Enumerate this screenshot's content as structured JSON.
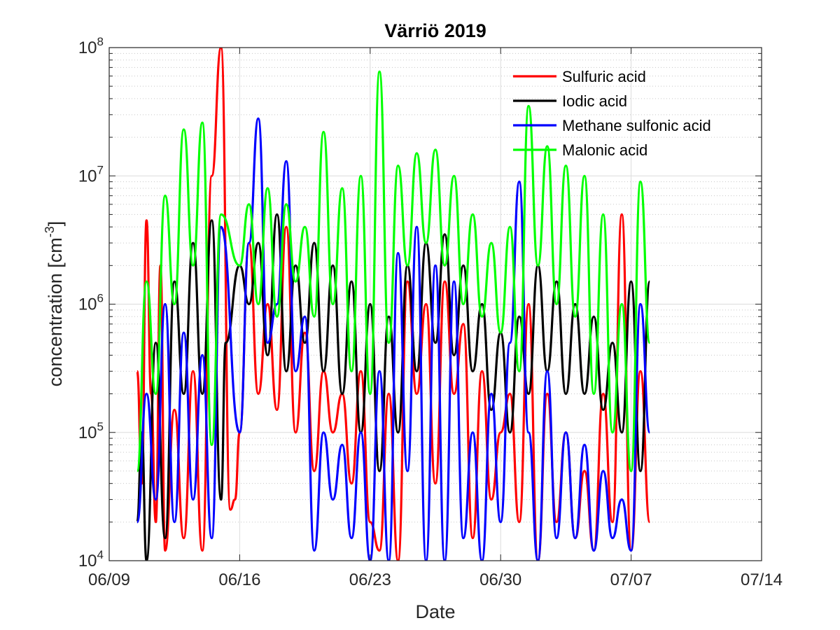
{
  "chart_data": {
    "type": "line",
    "title": "Värriö 2019",
    "xlabel": "Date",
    "ylabel_main": "concentration [cm",
    "ylabel_sup": "-3",
    "ylabel_end": "]",
    "y_scale": "log",
    "xlim": [
      "2019-06-09",
      "2019-07-14"
    ],
    "ylim": [
      10000,
      100000000
    ],
    "x_ticks": [
      {
        "date": "2019-06-09",
        "label": "06/09"
      },
      {
        "date": "2019-06-16",
        "label": "06/16"
      },
      {
        "date": "2019-06-23",
        "label": "06/23"
      },
      {
        "date": "2019-06-30",
        "label": "06/30"
      },
      {
        "date": "2019-07-07",
        "label": "07/07"
      },
      {
        "date": "2019-07-14",
        "label": "07/14"
      }
    ],
    "y_ticks": [
      {
        "value": 10000,
        "base": "10",
        "exp": "4"
      },
      {
        "value": 100000,
        "base": "10",
        "exp": "5"
      },
      {
        "value": 1000000,
        "base": "10",
        "exp": "6"
      },
      {
        "value": 10000000,
        "base": "10",
        "exp": "7"
      },
      {
        "value": 100000000,
        "base": "10",
        "exp": "8"
      }
    ],
    "grid": true,
    "minor_grid": true,
    "legend_position": "top-right",
    "series": [
      {
        "name": "Sulfuric acid",
        "color": "#ff0000",
        "x": [
          "2019-06-10 12:00",
          "2019-06-10 18:00",
          "2019-06-11 00:00",
          "2019-06-11 06:00",
          "2019-06-11 12:00",
          "2019-06-11 18:00",
          "2019-06-12 00:00",
          "2019-06-12 12:00",
          "2019-06-13 00:00",
          "2019-06-13 12:00",
          "2019-06-14 00:00",
          "2019-06-14 12:00",
          "2019-06-15 00:00",
          "2019-06-15 12:00",
          "2019-06-15 18:00",
          "2019-06-16 00:00",
          "2019-06-16 12:00",
          "2019-06-17 00:00",
          "2019-06-17 12:00",
          "2019-06-18 00:00",
          "2019-06-18 12:00",
          "2019-06-19 00:00",
          "2019-06-19 12:00",
          "2019-06-20 00:00",
          "2019-06-20 12:00",
          "2019-06-21 00:00",
          "2019-06-21 12:00",
          "2019-06-22 00:00",
          "2019-06-22 12:00",
          "2019-06-23 00:00",
          "2019-06-23 12:00",
          "2019-06-24 00:00",
          "2019-06-24 12:00",
          "2019-06-25 00:00",
          "2019-06-25 12:00",
          "2019-06-26 00:00",
          "2019-06-26 12:00",
          "2019-06-27 00:00",
          "2019-06-27 12:00",
          "2019-06-28 00:00",
          "2019-06-28 12:00",
          "2019-06-29 00:00",
          "2019-06-29 12:00",
          "2019-06-30 00:00",
          "2019-06-30 12:00",
          "2019-07-01 00:00",
          "2019-07-01 12:00",
          "2019-07-02 00:00",
          "2019-07-02 12:00",
          "2019-07-03 00:00",
          "2019-07-03 12:00",
          "2019-07-04 00:00",
          "2019-07-04 12:00",
          "2019-07-05 00:00",
          "2019-07-05 12:00",
          "2019-07-06 00:00",
          "2019-07-06 12:00",
          "2019-07-07 00:00",
          "2019-07-07 12:00",
          "2019-07-08 00:00"
        ],
        "y": [
          300000,
          40000,
          4500000,
          200000,
          20000,
          2000000,
          12000,
          150000,
          15000,
          300000,
          12000,
          10000000,
          100000000,
          25000,
          30000,
          100000,
          3000000,
          200000,
          1000000,
          150000,
          4000000,
          100000,
          600000,
          50000,
          300000,
          100000,
          200000,
          40000,
          300000,
          20000,
          12000,
          200000,
          10000,
          1500000,
          200000,
          1000000,
          40000,
          1500000,
          200000,
          700000,
          15000,
          300000,
          30000,
          100000,
          200000,
          20000,
          1000000,
          10000,
          200000,
          20000,
          100000,
          15000,
          50000,
          12000,
          200000,
          20000,
          5000000,
          12000,
          300000,
          20000
        ]
      },
      {
        "name": "Iodic acid",
        "color": "#000000",
        "x": [
          "2019-06-10 12:00",
          "2019-06-10 18:00",
          "2019-06-11 00:00",
          "2019-06-11 12:00",
          "2019-06-12 00:00",
          "2019-06-12 12:00",
          "2019-06-13 00:00",
          "2019-06-13 12:00",
          "2019-06-14 00:00",
          "2019-06-14 12:00",
          "2019-06-15 00:00",
          "2019-06-15 06:00",
          "2019-06-16 00:00",
          "2019-06-16 12:00",
          "2019-06-17 00:00",
          "2019-06-17 12:00",
          "2019-06-18 00:00",
          "2019-06-18 12:00",
          "2019-06-19 00:00",
          "2019-06-19 12:00",
          "2019-06-20 00:00",
          "2019-06-20 12:00",
          "2019-06-21 00:00",
          "2019-06-21 12:00",
          "2019-06-22 00:00",
          "2019-06-22 12:00",
          "2019-06-23 00:00",
          "2019-06-23 12:00",
          "2019-06-24 00:00",
          "2019-06-24 12:00",
          "2019-06-25 00:00",
          "2019-06-25 12:00",
          "2019-06-26 00:00",
          "2019-06-26 12:00",
          "2019-06-27 00:00",
          "2019-06-27 12:00",
          "2019-06-28 00:00",
          "2019-06-28 12:00",
          "2019-06-29 00:00",
          "2019-06-29 12:00",
          "2019-06-30 00:00",
          "2019-06-30 12:00",
          "2019-07-01 00:00",
          "2019-07-01 12:00",
          "2019-07-02 00:00",
          "2019-07-02 12:00",
          "2019-07-03 00:00",
          "2019-07-03 12:00",
          "2019-07-04 00:00",
          "2019-07-04 12:00",
          "2019-07-05 00:00",
          "2019-07-05 12:00",
          "2019-07-06 00:00",
          "2019-07-06 12:00",
          "2019-07-07 00:00",
          "2019-07-07 12:00",
          "2019-07-08 00:00"
        ],
        "y": [
          20000,
          100000,
          10000,
          500000,
          15000,
          1500000,
          200000,
          3000000,
          200000,
          4500000,
          30000,
          500000,
          2000000,
          1000000,
          3000000,
          400000,
          5000000,
          300000,
          2000000,
          500000,
          3000000,
          300000,
          2000000,
          200000,
          1500000,
          100000,
          1000000,
          50000,
          800000,
          100000,
          2000000,
          300000,
          3000000,
          500000,
          3500000,
          400000,
          2000000,
          300000,
          1000000,
          150000,
          600000,
          100000,
          800000,
          200000,
          2000000,
          300000,
          1500000,
          200000,
          1000000,
          200000,
          800000,
          150000,
          500000,
          100000,
          1500000,
          50000,
          1500000
        ]
      },
      {
        "name": "Methane sulfonic acid",
        "color": "#0000ff",
        "x": [
          "2019-06-10 12:00",
          "2019-06-11 00:00",
          "2019-06-11 12:00",
          "2019-06-12 00:00",
          "2019-06-12 12:00",
          "2019-06-13 00:00",
          "2019-06-13 12:00",
          "2019-06-14 00:00",
          "2019-06-14 12:00",
          "2019-06-15 00:00",
          "2019-06-16 00:00",
          "2019-06-16 12:00",
          "2019-06-17 00:00",
          "2019-06-17 12:00",
          "2019-06-18 00:00",
          "2019-06-18 12:00",
          "2019-06-19 00:00",
          "2019-06-19 12:00",
          "2019-06-20 00:00",
          "2019-06-20 12:00",
          "2019-06-21 00:00",
          "2019-06-21 12:00",
          "2019-06-22 00:00",
          "2019-06-22 12:00",
          "2019-06-23 00:00",
          "2019-06-23 12:00",
          "2019-06-24 00:00",
          "2019-06-24 12:00",
          "2019-06-25 00:00",
          "2019-06-25 12:00",
          "2019-06-26 00:00",
          "2019-06-26 12:00",
          "2019-06-27 00:00",
          "2019-06-27 12:00",
          "2019-06-28 00:00",
          "2019-06-28 12:00",
          "2019-06-29 00:00",
          "2019-06-29 12:00",
          "2019-06-30 00:00",
          "2019-06-30 12:00",
          "2019-07-01 00:00",
          "2019-07-01 12:00",
          "2019-07-02 00:00",
          "2019-07-02 12:00",
          "2019-07-03 00:00",
          "2019-07-03 12:00",
          "2019-07-04 00:00",
          "2019-07-04 12:00",
          "2019-07-05 00:00",
          "2019-07-05 12:00",
          "2019-07-06 00:00",
          "2019-07-06 12:00",
          "2019-07-07 00:00",
          "2019-07-07 12:00",
          "2019-07-08 00:00"
        ],
        "y": [
          20000,
          200000,
          30000,
          1000000,
          20000,
          600000,
          30000,
          400000,
          15000,
          4000000,
          100000,
          3000000,
          28000000,
          500000,
          1000000,
          13000000,
          300000,
          800000,
          12000,
          100000,
          30000,
          80000,
          15000,
          100000,
          10000,
          300000,
          10000,
          2500000,
          50000,
          4000000,
          10000,
          2000000,
          10000,
          1500000,
          15000,
          100000,
          10000,
          200000,
          20000,
          500000,
          9000000,
          100000,
          10000,
          300000,
          15000,
          100000,
          15000,
          80000,
          12000,
          50000,
          15000,
          30000,
          12000,
          1000000,
          100000
        ]
      },
      {
        "name": "Malonic acid",
        "color": "#00ff00",
        "x": [
          "2019-06-10 12:00",
          "2019-06-11 00:00",
          "2019-06-11 12:00",
          "2019-06-12 00:00",
          "2019-06-12 12:00",
          "2019-06-13 00:00",
          "2019-06-13 12:00",
          "2019-06-14 00:00",
          "2019-06-14 12:00",
          "2019-06-15 00:00",
          "2019-06-16 00:00",
          "2019-06-16 12:00",
          "2019-06-17 00:00",
          "2019-06-17 12:00",
          "2019-06-18 00:00",
          "2019-06-18 12:00",
          "2019-06-19 00:00",
          "2019-06-19 12:00",
          "2019-06-20 00:00",
          "2019-06-20 12:00",
          "2019-06-21 00:00",
          "2019-06-21 12:00",
          "2019-06-22 00:00",
          "2019-06-22 12:00",
          "2019-06-23 00:00",
          "2019-06-23 12:00",
          "2019-06-24 00:00",
          "2019-06-24 12:00",
          "2019-06-25 00:00",
          "2019-06-25 12:00",
          "2019-06-26 00:00",
          "2019-06-26 12:00",
          "2019-06-27 00:00",
          "2019-06-27 12:00",
          "2019-06-28 00:00",
          "2019-06-28 12:00",
          "2019-06-29 00:00",
          "2019-06-29 12:00",
          "2019-06-30 00:00",
          "2019-06-30 12:00",
          "2019-07-01 00:00",
          "2019-07-01 12:00",
          "2019-07-02 00:00",
          "2019-07-02 12:00",
          "2019-07-03 00:00",
          "2019-07-03 12:00",
          "2019-07-04 00:00",
          "2019-07-04 12:00",
          "2019-07-05 00:00",
          "2019-07-05 12:00",
          "2019-07-06 00:00",
          "2019-07-06 12:00",
          "2019-07-07 00:00",
          "2019-07-07 12:00",
          "2019-07-08 00:00"
        ],
        "y": [
          50000,
          1500000,
          200000,
          7000000,
          1000000,
          23000000,
          2000000,
          26000000,
          80000,
          5000000,
          2000000,
          6000000,
          1000000,
          8000000,
          800000,
          6000000,
          1500000,
          4000000,
          800000,
          22000000,
          1000000,
          8000000,
          300000,
          10000000,
          200000,
          65000000,
          500000,
          12000000,
          2000000,
          15000000,
          3000000,
          16000000,
          2000000,
          10000000,
          1000000,
          5000000,
          800000,
          3000000,
          600000,
          4000000,
          300000,
          35000000,
          2000000,
          17000000,
          1000000,
          12000000,
          800000,
          10000000,
          200000,
          5000000,
          100000,
          1000000,
          50000,
          9000000,
          500000
        ]
      }
    ]
  }
}
